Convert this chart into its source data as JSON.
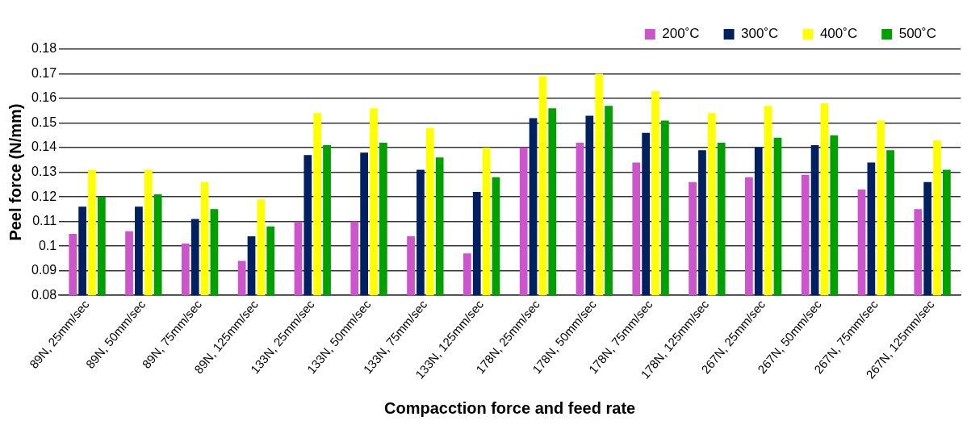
{
  "chart_data": {
    "type": "bar",
    "xlabel": "Compacction force and feed rate",
    "ylabel": "Peel force (N/mm)",
    "categories": [
      "89N, 25mm/sec",
      "89N, 50mm/sec",
      "89N, 75mm/sec",
      "89N, 125mm/sec",
      "133N, 25mm/sec",
      "133N, 50mm/sec",
      "133N, 75mm/sec",
      "133N, 125mm/sec",
      "178N, 25mm/sec",
      "178N, 50mm/sec",
      "178N, 75mm/sec",
      "178N, 125mm/sec",
      "267N, 25mm/sec",
      "267N, 50mm/sec",
      "267N, 75mm/sec",
      "267N, 125mm/sec"
    ],
    "series": [
      {
        "name": "200˚C",
        "color": "#cc55cc",
        "values": [
          0.105,
          0.106,
          0.101,
          0.094,
          0.11,
          0.11,
          0.104,
          0.097,
          0.14,
          0.142,
          0.134,
          0.126,
          0.128,
          0.129,
          0.123,
          0.115
        ]
      },
      {
        "name": "300˚C",
        "color": "#002060",
        "values": [
          0.116,
          0.116,
          0.111,
          0.104,
          0.137,
          0.138,
          0.131,
          0.122,
          0.152,
          0.153,
          0.146,
          0.139,
          0.14,
          0.141,
          0.134,
          0.126
        ]
      },
      {
        "name": "400˚C",
        "color": "#ffff00",
        "values": [
          0.131,
          0.131,
          0.126,
          0.119,
          0.154,
          0.156,
          0.148,
          0.14,
          0.169,
          0.17,
          0.163,
          0.154,
          0.157,
          0.158,
          0.151,
          0.143
        ]
      },
      {
        "name": "500˚C",
        "color": "#00a000",
        "values": [
          0.12,
          0.121,
          0.115,
          0.108,
          0.141,
          0.142,
          0.136,
          0.128,
          0.156,
          0.157,
          0.151,
          0.142,
          0.144,
          0.145,
          0.139,
          0.131
        ]
      }
    ],
    "ylim": [
      0.08,
      0.18
    ],
    "yticks": [
      0.08,
      0.09,
      0.1,
      0.11,
      0.12,
      0.13,
      0.14,
      0.15,
      0.16,
      0.17,
      0.18
    ],
    "grid": "y",
    "legend": "top right"
  }
}
